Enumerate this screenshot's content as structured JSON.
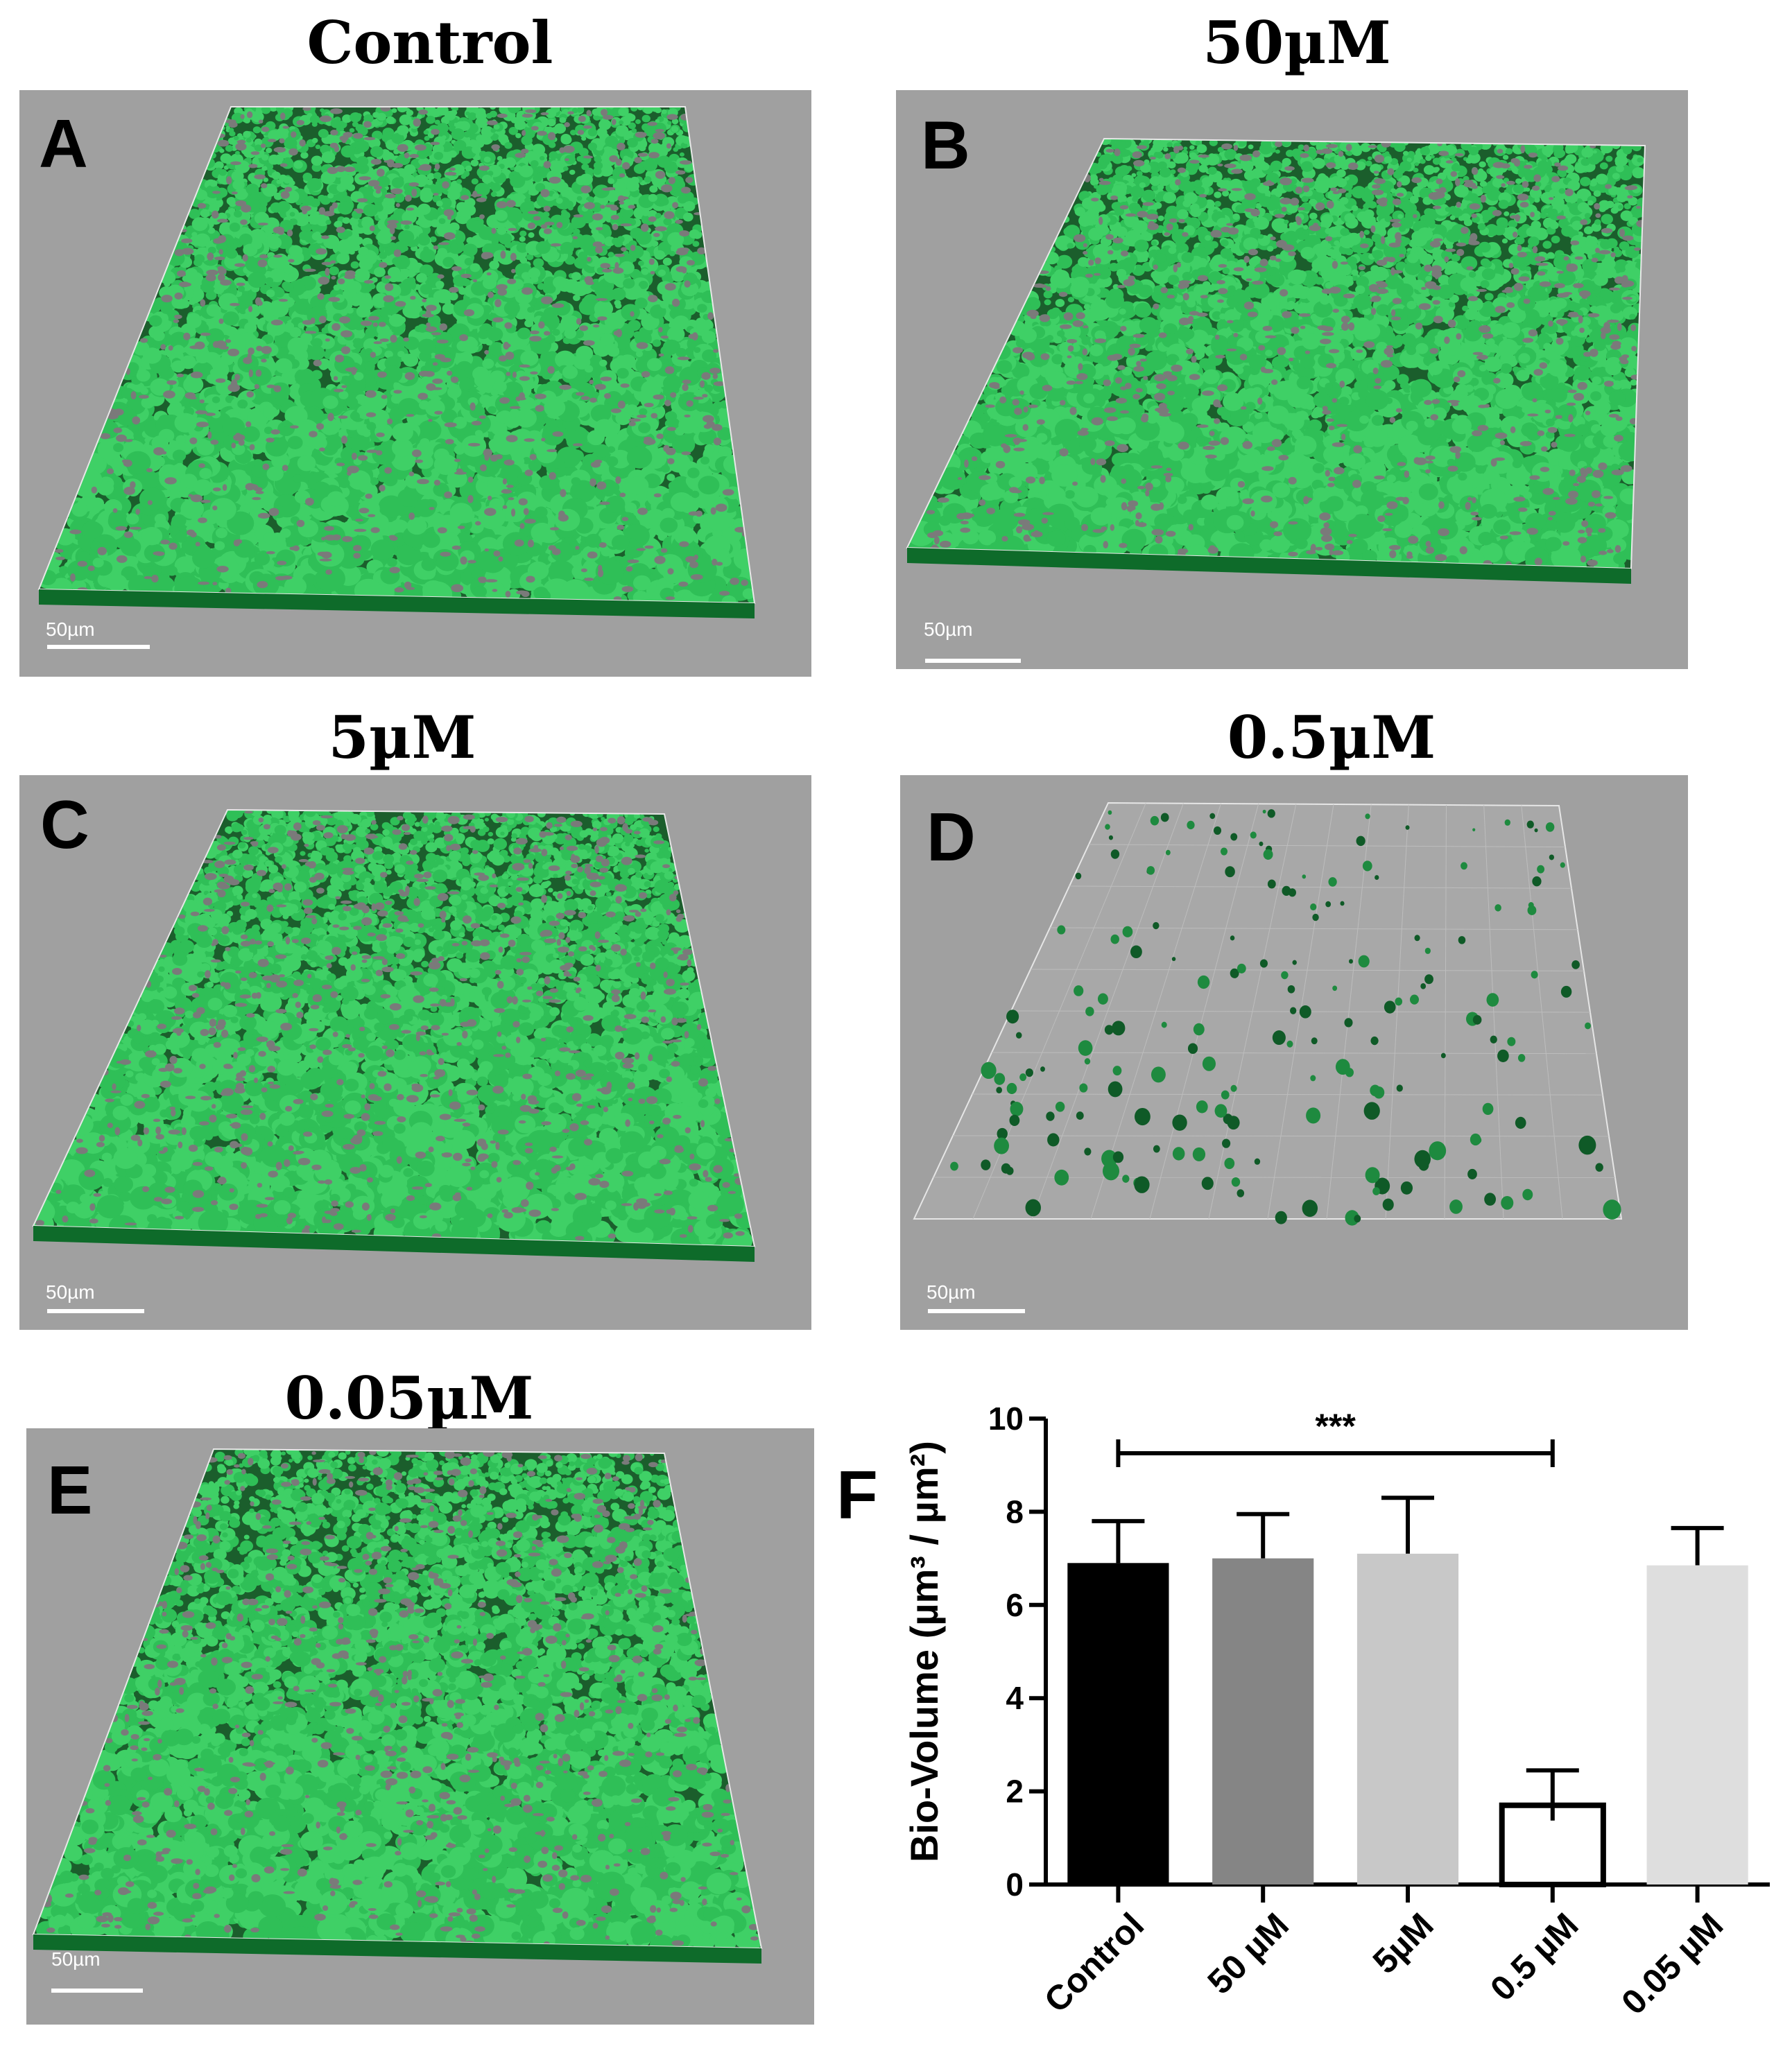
{
  "panels": [
    {
      "letter": "A",
      "title": "Control",
      "scale": "50µm"
    },
    {
      "letter": "B",
      "title": "50µM",
      "scale": "50µm"
    },
    {
      "letter": "C",
      "title": "5µM",
      "scale": "50µm"
    },
    {
      "letter": "D",
      "title": "0.5µM",
      "scale": "50µm"
    },
    {
      "letter": "E",
      "title": "0.05µM",
      "scale": "50µm"
    }
  ],
  "chart_panel_letter": "F",
  "colors": {
    "biofilm": "#2fbf57",
    "biofilm_dark": "#0e6b2a",
    "panel_bg": "#a0a0a0"
  },
  "chart_data": {
    "type": "bar",
    "categories": [
      "Control",
      "50 µM",
      "5µM",
      "0.5 µM",
      "0.05 µM"
    ],
    "values": [
      6.9,
      7.0,
      7.1,
      1.7,
      6.85
    ],
    "errors": [
      0.9,
      0.95,
      1.2,
      0.75,
      0.8
    ],
    "bar_colors": [
      "#000000",
      "#858585",
      "#c8c8c8",
      "#ffffff",
      "#dedede"
    ],
    "ylabel": "Bio-Volume (µm³ / µm²)",
    "ylim": [
      0,
      10
    ],
    "yticks": [
      "0",
      "2",
      "4",
      "6",
      "8",
      "10"
    ],
    "significance": {
      "label": "***",
      "from": "Control",
      "to": "0.5 µM"
    }
  }
}
